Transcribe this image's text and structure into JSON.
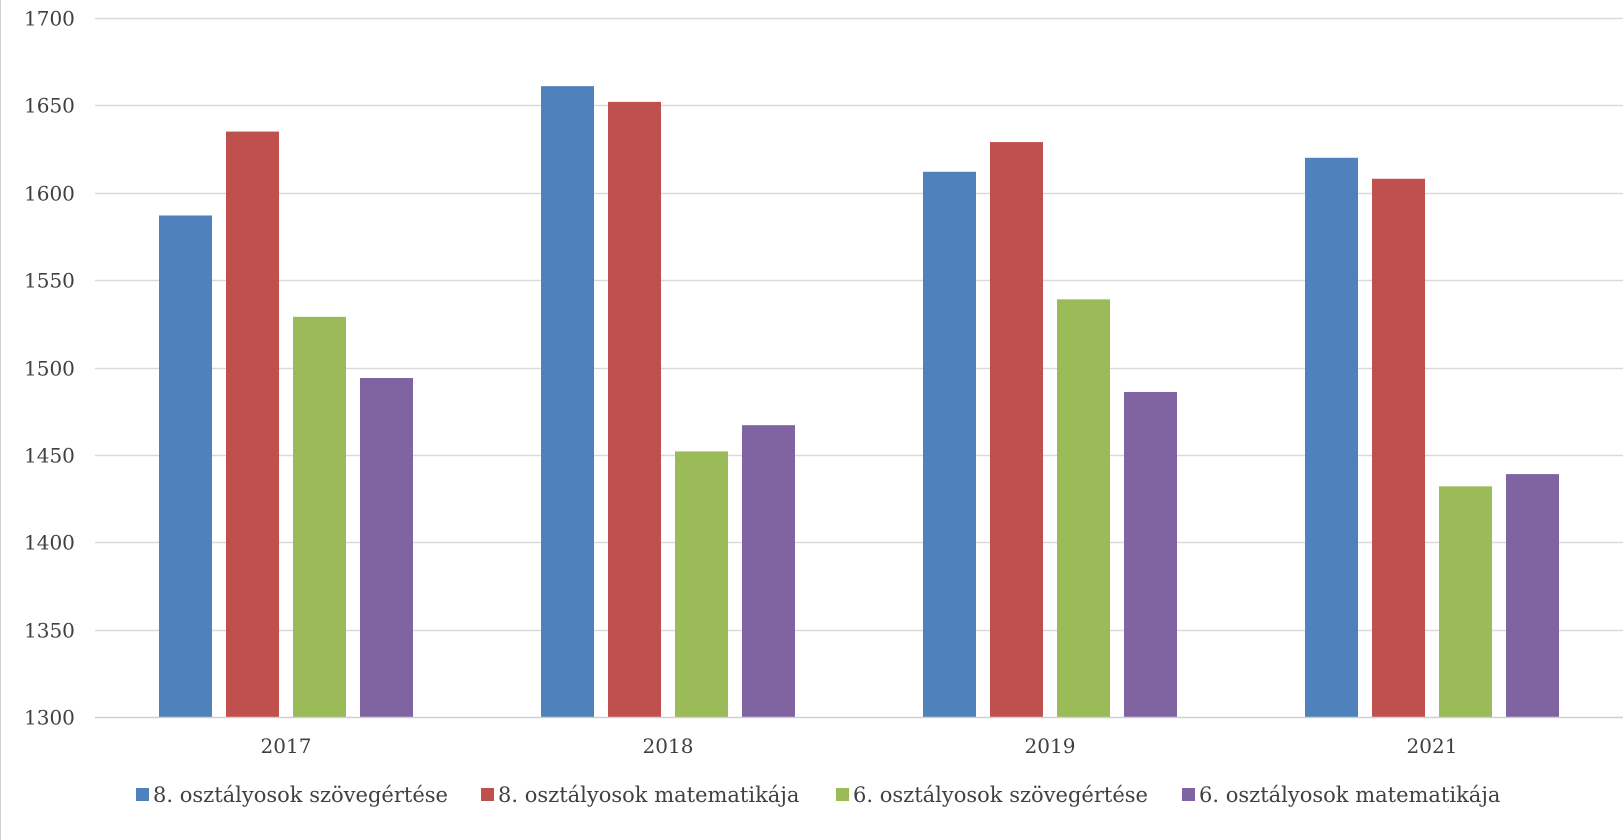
{
  "chart_data": {
    "type": "bar",
    "categories": [
      "2017",
      "2018",
      "2019",
      "2021"
    ],
    "series": [
      {
        "name": "8. osztályosok szövegértése",
        "color": "#4F81BD",
        "values": [
          1587,
          1661,
          1612,
          1620
        ]
      },
      {
        "name": "8. osztályosok matematikája",
        "color": "#C0504D",
        "values": [
          1635,
          1652,
          1629,
          1608
        ]
      },
      {
        "name": "6. osztályosok szövegértése",
        "color": "#9BBB59",
        "values": [
          1529,
          1452,
          1539,
          1432
        ]
      },
      {
        "name": "6. osztályosok matematikája",
        "color": "#8064A2",
        "values": [
          1494,
          1467,
          1486,
          1439
        ]
      }
    ],
    "y_ticks": [
      "1300",
      "1350",
      "1400",
      "1450",
      "1500",
      "1550",
      "1600",
      "1650",
      "1700"
    ],
    "ylim": [
      1300,
      1700
    ],
    "grid": true,
    "legend_position": "bottom",
    "title": "",
    "xlabel": "",
    "ylabel": ""
  }
}
